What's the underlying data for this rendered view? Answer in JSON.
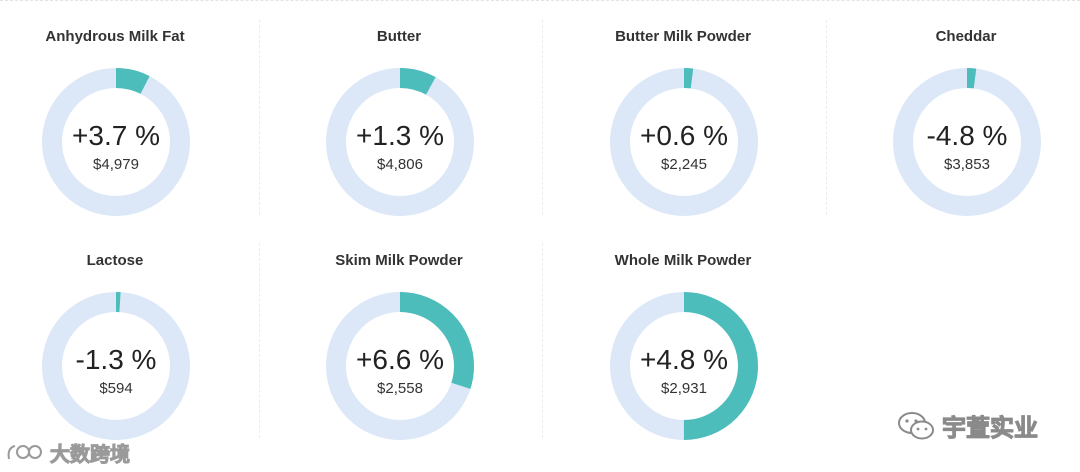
{
  "chart_data": {
    "type": "donut",
    "series": [
      {
        "name": "Anhydrous Milk Fat",
        "change_label": "+3.7 %",
        "change_pct": 3.7,
        "price": "$4,979"
      },
      {
        "name": "Butter",
        "change_label": "+1.3 %",
        "change_pct": 1.3,
        "price": "$4,806"
      },
      {
        "name": "Butter Milk Powder",
        "change_label": "+0.6 %",
        "change_pct": 0.6,
        "price": "$2,245"
      },
      {
        "name": "Cheddar",
        "change_label": "-4.8 %",
        "change_pct": -4.8,
        "price": "$3,853"
      },
      {
        "name": "Lactose",
        "change_label": "-1.3 %",
        "change_pct": -1.3,
        "price": "$594"
      },
      {
        "name": "Skim Milk Powder",
        "change_label": "+6.6 %",
        "change_pct": 6.6,
        "price": "$2,558"
      },
      {
        "name": "Whole Milk Powder",
        "change_label": "+4.8 %",
        "change_pct": 4.8,
        "price": "$2,931"
      }
    ],
    "ring_fill_fraction": [
      0.075,
      0.08,
      0.02,
      0.02,
      0.01,
      0.3,
      0.5
    ],
    "colors": {
      "track": "#dce8f7",
      "fill": "#4dbdbc"
    }
  },
  "watermarks": {
    "left": "大数跨境",
    "right": "宇萱实业"
  }
}
